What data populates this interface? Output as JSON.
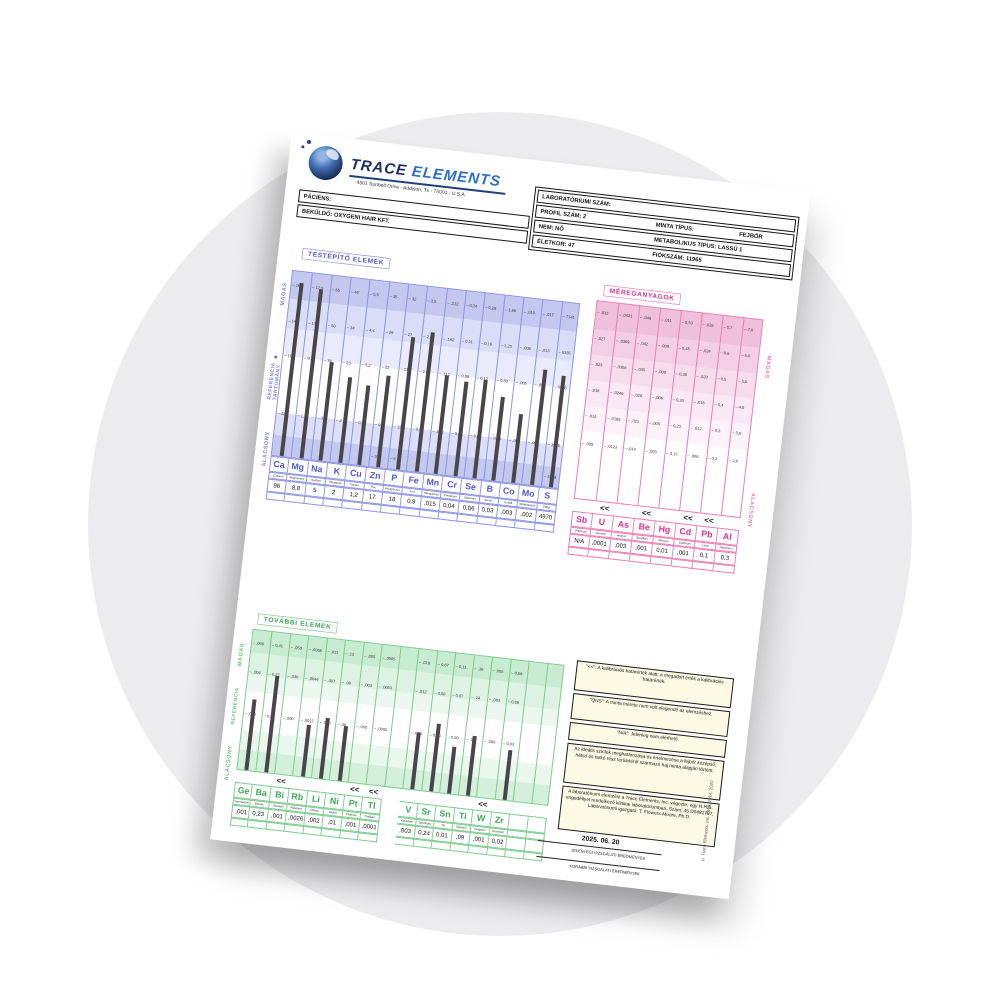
{
  "brand": {
    "word1": "TRACE",
    "word2": "ELEMENTS",
    "address": "4501 Sunbelt Drive - Addison, Tx - 75001 - U.S.A."
  },
  "patient_box": {
    "patient": "PÁCIENS:",
    "sender": "BEKÜLDŐ: OXYGENI HAIR KFT."
  },
  "lab_box": {
    "lab_number": "LABORATÓRIUMI SZÁM:",
    "profile": "PROFIL SZÁM: 2",
    "sample_type": "MINTA TÍPUS:",
    "sample_type_value": "FEJBŐR",
    "sex": "NEM: NŐ",
    "metabolic_type": "METABOLIKUS TÍPUS: LASSÚ 1",
    "age": "ÉLETKOR: 47",
    "account": "FIÓKSZÁM: 11965"
  },
  "charts": {
    "nutritional": {
      "title": "TESTÉPÍTŐ ELEMEK",
      "side_labels": [
        "MAGAS",
        "REFERENCIA\nTARTOMÁNY",
        "ALACSONY"
      ],
      "elements": [
        {
          "symbol": "Ca",
          "name": "Calcium",
          "value": "96",
          "ticks": [
            "166",
            "145",
            "104",
            "22"
          ],
          "bottom_tick": "",
          "bar": 0.93,
          "flag": ""
        },
        {
          "symbol": "Mg",
          "name": "Magnesium",
          "value": "8,8",
          "ticks": [
            "17,5",
            "13,5",
            "9,4",
            "1,3"
          ],
          "bottom_tick": "",
          "bar": 0.91,
          "flag": ""
        },
        {
          "symbol": "Na",
          "name": "Sodium",
          "value": "5",
          "ticks": [
            "65",
            "50",
            "34",
            "3"
          ],
          "bottom_tick": "",
          "bar": 0.53,
          "flag": ""
        },
        {
          "symbol": "K",
          "name": "Potassium",
          "value": "2",
          "ticks": [
            "44",
            "34",
            "23",
            "2"
          ],
          "bottom_tick": "",
          "bar": 0.46,
          "flag": ""
        },
        {
          "symbol": "Cu",
          "name": "Copper",
          "value": "1,2",
          "ticks": [
            "5,5",
            "4,4",
            "3,2",
            "0,9"
          ],
          "bottom_tick": "",
          "bar": 0.43,
          "flag": ""
        },
        {
          "symbol": "Zn",
          "name": "Zinc",
          "value": "17",
          "ticks": [
            "35",
            "29",
            "22",
            "9"
          ],
          "bottom_tick": "3",
          "bar": 0.49,
          "flag": ""
        },
        {
          "symbol": "P",
          "name": "Phosphorus",
          "value": "18",
          "ticks": [
            "32",
            "27",
            "21",
            "15"
          ],
          "bottom_tick": "5",
          "bar": 0.71,
          "flag": ""
        },
        {
          "symbol": "Fe",
          "name": "Iron",
          "value": "0,9",
          "ticks": [
            "3,5",
            "2,8",
            "2,0",
            "0,5"
          ],
          "bottom_tick": "",
          "bar": 0.75,
          "flag": ""
        },
        {
          "symbol": "Mn",
          "name": "Manganese",
          "value": ",015",
          "ticks": [
            ",212",
            ",162",
            ",112",
            ",012"
          ],
          "bottom_tick": "",
          "bar": 0.53,
          "flag": ""
        },
        {
          "symbol": "Cr",
          "name": "Chromium",
          "value": "0,04",
          "ticks": [
            "0,14",
            "0,11",
            "0,08",
            "0,02"
          ],
          "bottom_tick": "",
          "bar": 0.51,
          "flag": ""
        },
        {
          "symbol": "Se",
          "name": "Selenium",
          "value": "0,06",
          "ticks": [
            "0,29",
            "0,16",
            "0,12",
            "0,04"
          ],
          "bottom_tick": "",
          "bar": 0.53,
          "flag": ""
        },
        {
          "symbol": "B",
          "name": "Boron",
          "value": "0,03",
          "ticks": [
            "1,66",
            "1,25",
            "0,83",
            "0,00"
          ],
          "bottom_tick": "",
          "bar": 0.45,
          "flag": ""
        },
        {
          "symbol": "Co",
          "name": "Cobalt",
          "value": ",003",
          "ticks": [
            ",010",
            ",008",
            ",005",
            ",000"
          ],
          "bottom_tick": "",
          "bar": 0.37,
          "flag": ""
        },
        {
          "symbol": "Mo",
          "name": "Molybdenum",
          "value": ",002",
          "ticks": [
            ",017",
            ",013",
            ",009",
            ",001"
          ],
          "bottom_tick": "",
          "bar": 0.62,
          "flag": ""
        },
        {
          "symbol": "S",
          "name": "Sulfur",
          "value": "4970",
          "ticks": [
            "7141",
            "6335",
            "5526",
            "3915"
          ],
          "bottom_tick": "3109",
          "bar": 0.6,
          "flag": ""
        }
      ]
    },
    "toxic": {
      "title": "MÉREGANYAGOK",
      "side_labels": [
        "MAGAS",
        "ALACSONY"
      ],
      "elements": [
        {
          "symbol": "Sb",
          "name": "Antimony",
          "value": "N/A",
          "ticks": [
            ",032",
            ",027",
            ",023",
            ",018",
            ",014",
            ",009"
          ],
          "bar": 0,
          "flag": ""
        },
        {
          "symbol": "U",
          "name": "Uranium",
          "value": ",0001",
          "ticks": [
            ",0431",
            ",0369",
            ",0308",
            ",0246",
            ",0185",
            ",0123"
          ],
          "bar": 0,
          "flag": "<<"
        },
        {
          "symbol": "As",
          "name": "Arsenic",
          "value": ",003",
          "ticks": [
            ",049",
            ",042",
            ",035",
            ",028",
            ",021",
            ",014"
          ],
          "bar": 0,
          "flag": ""
        },
        {
          "symbol": "Be",
          "name": "Beryllium",
          "value": ",001",
          "ticks": [
            ",011",
            ",009",
            ",008",
            ",006",
            ",005",
            ",003"
          ],
          "bar": 0,
          "flag": "<<"
        },
        {
          "symbol": "Hg",
          "name": "Mercury",
          "value": "0,01",
          "ticks": [
            "0,53",
            "0,45",
            "0,38",
            "0,30",
            "0,23",
            "0,15"
          ],
          "bar": 0,
          "flag": ""
        },
        {
          "symbol": "Cd",
          "name": "Cadmium",
          "value": ",001",
          "ticks": [
            ",026",
            ",024",
            ",020",
            ",016",
            ",012",
            ",008"
          ],
          "bar": 0,
          "flag": "<<"
        },
        {
          "symbol": "Pb",
          "name": "Lead",
          "value": "0,1",
          "ticks": [
            "0,7",
            "0,6",
            "0,5",
            "0,4",
            "0,3",
            "0,2"
          ],
          "bar": 0,
          "flag": "<<"
        },
        {
          "symbol": "Al",
          "name": "Aluminum",
          "value": "0,3",
          "ticks": [
            "7,0",
            "6,0",
            "5,0",
            "4,0",
            "3,0",
            "2,0"
          ],
          "bar": 0,
          "flag": ""
        }
      ]
    },
    "additional": {
      "title": "TOVÁBBI ELEMEK",
      "side_labels": [
        "MAGAS",
        "REFERENCIA",
        "ALACSONY"
      ],
      "elements": [
        {
          "symbol": "Ge",
          "name": "Germanium",
          "value": ",001",
          "ticks": [
            ",006",
            ",004",
            ",000"
          ],
          "bar": 0.5,
          "flag": ""
        },
        {
          "symbol": "Ba",
          "name": "Barium",
          "value": "0,23",
          "ticks": [
            "0,41",
            "0,27",
            "0,00"
          ],
          "bar": 0.68,
          "flag": ""
        },
        {
          "symbol": "Bi",
          "name": "Bismuth",
          "value": ",001",
          "ticks": [
            ",053",
            ",036",
            ",000"
          ],
          "bar": 0,
          "flag": "<<"
        },
        {
          "symbol": "Rb",
          "name": "Rubidium",
          "value": ",0026",
          "ticks": [
            ",0068",
            ",0044",
            ",0017"
          ],
          "bar": 0.37,
          "flag": ""
        },
        {
          "symbol": "Li",
          "name": "Lithium",
          "value": ",002",
          "ticks": [
            ",011",
            ",007",
            ",000"
          ],
          "bar": 0.43,
          "flag": ""
        },
        {
          "symbol": "Ni",
          "name": "Nickel",
          "value": ",01",
          "ticks": [
            ",12",
            ",08",
            ",00"
          ],
          "bar": 0.39,
          "flag": ""
        },
        {
          "symbol": "Pt",
          "name": "Platinum",
          "value": ",001",
          "ticks": [
            ",005",
            ",003",
            ",000"
          ],
          "bar": 0,
          "flag": "<<"
        },
        {
          "symbol": "Tl",
          "name": "Thallium",
          "value": ",0001",
          "ticks": [
            ",0005",
            ",0003",
            ",0000"
          ],
          "bar": 0,
          "flag": "<<"
        },
        {
          "symbol": "",
          "name": "",
          "value": "",
          "ticks": [
            "",
            "",
            ""
          ],
          "bar": 0,
          "flag": "",
          "spacer": true
        },
        {
          "symbol": "V",
          "name": "Vanadium",
          "value": ",003",
          "ticks": [
            ",019",
            ",012",
            ",000"
          ],
          "bar": 0.4,
          "flag": ""
        },
        {
          "symbol": "Sr",
          "name": "Strontium",
          "value": "0,24",
          "ticks": [
            "0,87",
            "0,58",
            "0,00"
          ],
          "bar": 0.48,
          "flag": ""
        },
        {
          "symbol": "Sn",
          "name": "Tin",
          "value": "0,01",
          "ticks": [
            "0,11",
            "0,07",
            "0,00"
          ],
          "bar": 0.33,
          "flag": ""
        },
        {
          "symbol": "Ti",
          "name": "Titanium",
          "value": ",09",
          "ticks": [
            ",36",
            ",24",
            ",00"
          ],
          "bar": 0.42,
          "flag": ""
        },
        {
          "symbol": "W",
          "name": "Tungsten",
          "value": ",001",
          "ticks": [
            ",005",
            ",003",
            ",000"
          ],
          "bar": 0,
          "flag": "<<"
        },
        {
          "symbol": "Zr",
          "name": "Zirconium",
          "value": "0,02",
          "ticks": [
            "0,09",
            "0,06",
            "0,03"
          ],
          "bar": 0.35,
          "flag": ""
        },
        {
          "symbol": "",
          "name": "",
          "value": "",
          "ticks": [
            "",
            "",
            ""
          ],
          "bar": 0,
          "flag": ""
        },
        {
          "symbol": "",
          "name": "",
          "value": "",
          "ticks": [
            "",
            "",
            ""
          ],
          "bar": 0,
          "flag": ""
        }
      ]
    }
  },
  "notes": [
    "\"<<\": A kalibrációs határérték alatt; a megadott érték a kalibrációs határérték.",
    "\"QNS\": A minta mérete nem volt elegendő az elemzéshez.",
    "\"N/A\": Jelenleg nem elérhető.",
    "Az ideális szintek meghatározása és értelmezése a fejbőr középső, hátsó és tarkó rész területéről származó haj minta alapján történt.",
    "A laboratóriumi elemzést a Trace Elements, Inc. végezte, egy H.H.S. engedéllyel rendelkező klinikai laboratóriumban. Szám: 45 D0481787, Laboratóriumi igazgató: T. Flowers-Moore, Ph.D."
  ],
  "footer": {
    "date": "2025. 06. 20",
    "current": "JELENLEGI VIZSGÁLATI EREDMÉNYEK",
    "previous": "KORÁBBI VIZSGÁLATI EREDMÉNYEK",
    "copyright": "© Trace Elements, Inc. 1998, 2014, 2020"
  },
  "colors": {
    "nutritional_accent": "#4d56d8",
    "toxic_accent": "#e0318e",
    "additional_accent": "#3aa85a",
    "bar": "#47474b",
    "note_bg": "#fcfae5"
  }
}
